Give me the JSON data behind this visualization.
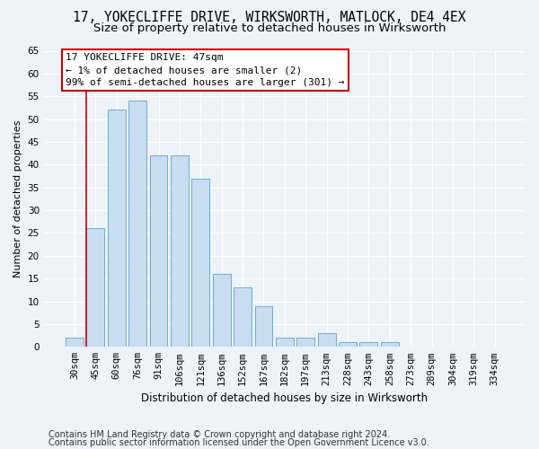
{
  "title": "17, YOKECLIFFE DRIVE, WIRKSWORTH, MATLOCK, DE4 4EX",
  "subtitle": "Size of property relative to detached houses in Wirksworth",
  "xlabel": "Distribution of detached houses by size in Wirksworth",
  "ylabel": "Number of detached properties",
  "categories": [
    "30sqm",
    "45sqm",
    "60sqm",
    "76sqm",
    "91sqm",
    "106sqm",
    "121sqm",
    "136sqm",
    "152sqm",
    "167sqm",
    "182sqm",
    "197sqm",
    "213sqm",
    "228sqm",
    "243sqm",
    "258sqm",
    "273sqm",
    "289sqm",
    "304sqm",
    "319sqm",
    "334sqm"
  ],
  "values": [
    2,
    26,
    52,
    54,
    42,
    42,
    37,
    16,
    13,
    9,
    2,
    2,
    3,
    1,
    1,
    1,
    0,
    0,
    0,
    0,
    0
  ],
  "bar_color": "#c8ddf0",
  "bar_edge_color": "#6aaed6",
  "background_color": "#eef2f9",
  "grid_color": "#ffffff",
  "property_line_color": "#cc0000",
  "annotation_text": "17 YOKECLIFFE DRIVE: 47sqm\n← 1% of detached houses are smaller (2)\n99% of semi-detached houses are larger (301) →",
  "annotation_box_color": "#ffffff",
  "annotation_box_edge": "#cc0000",
  "ylim": [
    0,
    65
  ],
  "yticks": [
    0,
    5,
    10,
    15,
    20,
    25,
    30,
    35,
    40,
    45,
    50,
    55,
    60,
    65
  ],
  "footer1": "Contains HM Land Registry data © Crown copyright and database right 2024.",
  "footer2": "Contains public sector information licensed under the Open Government Licence v3.0.",
  "title_fontsize": 10.5,
  "subtitle_fontsize": 9.5,
  "xlabel_fontsize": 8.5,
  "ylabel_fontsize": 8,
  "tick_fontsize": 7.5,
  "footer_fontsize": 7,
  "ann_fontsize": 8
}
